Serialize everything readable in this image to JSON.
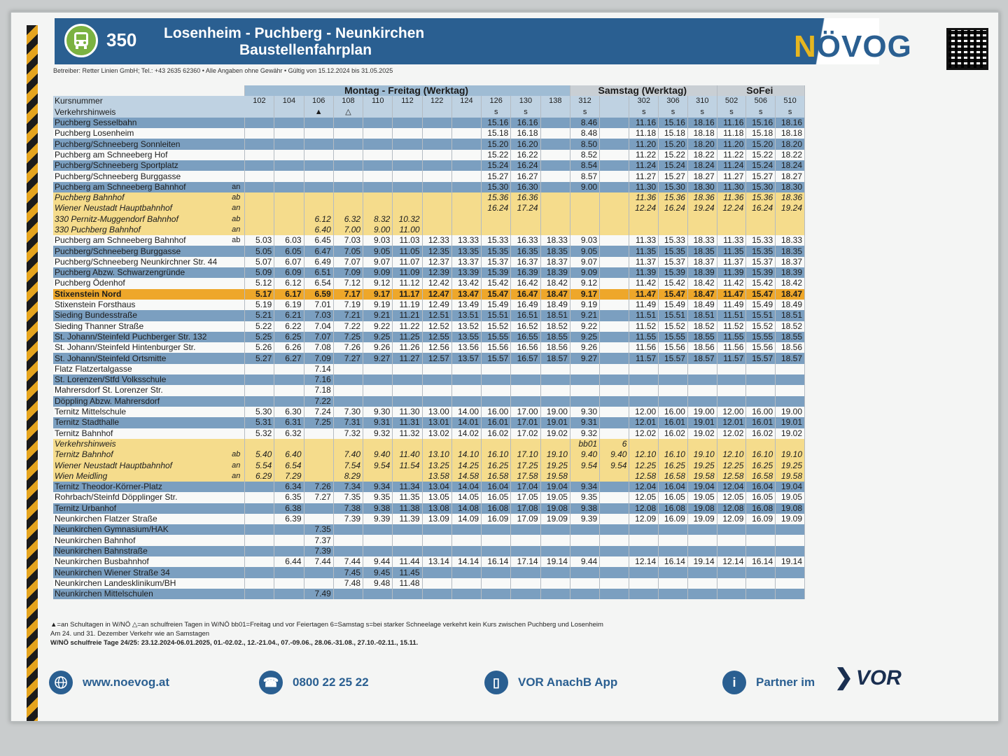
{
  "header": {
    "line_number": "350",
    "route_title": "Losenheim - Puchberg -  Neunkirchen",
    "subtitle": "Baustellenfahrplan",
    "brand_prefix": "N",
    "brand_name": "ÖVOG",
    "operator_line": "Betreiber: Retter Linien GmbH; Tel.: +43 2635 62360 • Alle Angaben ohne Gewähr • Gültig von 15.12.2024 bis 31.05.2025"
  },
  "groups": {
    "weekday": "Montag - Freitag (Werktag)",
    "saturday": "Samstag (Werktag)",
    "sunday": "SoFei"
  },
  "labels": {
    "kursnummer": "Kursnummer",
    "verkehrshinweis": "Verkehrshinweis"
  },
  "courses": [
    "102",
    "104",
    "106",
    "108",
    "110",
    "112",
    "122",
    "124",
    "126",
    "130",
    "138",
    "312",
    "",
    "302",
    "306",
    "310",
    "502",
    "506",
    "510"
  ],
  "hints": [
    "",
    "",
    "▲",
    "△",
    "",
    "",
    "",
    "",
    "s",
    "s",
    "",
    "s",
    "",
    "s",
    "s",
    "s",
    "s",
    "s",
    "s"
  ],
  "rows": [
    {
      "stop": "Puchberg Sesselbahn",
      "ab": "",
      "style": "blue",
      "t": [
        "",
        "",
        "",
        "",
        "",
        "",
        "",
        "",
        "15.16",
        "16.16",
        "",
        "8.46",
        "",
        "11.16",
        "15.16",
        "18.16",
        "11.16",
        "15.16",
        "18.16"
      ]
    },
    {
      "stop": "Puchberg Losenheim",
      "ab": "",
      "style": "white",
      "t": [
        "",
        "",
        "",
        "",
        "",
        "",
        "",
        "",
        "15.18",
        "16.18",
        "",
        "8.48",
        "",
        "11.18",
        "15.18",
        "18.18",
        "11.18",
        "15.18",
        "18.18"
      ]
    },
    {
      "stop": "Puchberg/Schneeberg Sonnleiten",
      "ab": "",
      "style": "blue",
      "t": [
        "",
        "",
        "",
        "",
        "",
        "",
        "",
        "",
        "15.20",
        "16.20",
        "",
        "8.50",
        "",
        "11.20",
        "15.20",
        "18.20",
        "11.20",
        "15.20",
        "18.20"
      ]
    },
    {
      "stop": "Puchberg am Schneeberg Hof",
      "ab": "",
      "style": "white",
      "t": [
        "",
        "",
        "",
        "",
        "",
        "",
        "",
        "",
        "15.22",
        "16.22",
        "",
        "8.52",
        "",
        "11.22",
        "15.22",
        "18.22",
        "11.22",
        "15.22",
        "18.22"
      ]
    },
    {
      "stop": "Puchberg/Schneeberg Sportplatz",
      "ab": "",
      "style": "blue",
      "t": [
        "",
        "",
        "",
        "",
        "",
        "",
        "",
        "",
        "15.24",
        "16.24",
        "",
        "8.54",
        "",
        "11.24",
        "15.24",
        "18.24",
        "11.24",
        "15.24",
        "18.24"
      ]
    },
    {
      "stop": "Puchberg/Schneeberg Burggasse",
      "ab": "",
      "style": "white",
      "t": [
        "",
        "",
        "",
        "",
        "",
        "",
        "",
        "",
        "15.27",
        "16.27",
        "",
        "8.57",
        "",
        "11.27",
        "15.27",
        "18.27",
        "11.27",
        "15.27",
        "18.27"
      ]
    },
    {
      "stop": "Puchberg am Schneeberg Bahnhof",
      "ab": "an",
      "style": "blue",
      "t": [
        "",
        "",
        "",
        "",
        "",
        "",
        "",
        "",
        "15.30",
        "16.30",
        "",
        "9.00",
        "",
        "11.30",
        "15.30",
        "18.30",
        "11.30",
        "15.30",
        "18.30"
      ]
    },
    {
      "stop": "Puchberg Bahnhof",
      "ab": "ab",
      "style": "yellow",
      "t": [
        "",
        "",
        "",
        "",
        "",
        "",
        "",
        "",
        "15.36",
        "16.36",
        "",
        "",
        "",
        "11.36",
        "15.36",
        "18.36",
        "11.36",
        "15.36",
        "18.36"
      ]
    },
    {
      "stop": "Wiener Neustadt Hauptbahnhof",
      "ab": "an",
      "style": "yellow",
      "t": [
        "",
        "",
        "",
        "",
        "",
        "",
        "",
        "",
        "16.24",
        "17.24",
        "",
        "",
        "",
        "12.24",
        "16.24",
        "19.24",
        "12.24",
        "16.24",
        "19.24"
      ]
    },
    {
      "stop": "330 Pernitz-Muggendorf Bahnhof",
      "ab": "ab",
      "style": "yellow",
      "t": [
        "",
        "",
        "6.12",
        "6.32",
        "8.32",
        "10.32",
        "",
        "",
        "",
        "",
        "",
        "",
        "",
        "",
        "",
        "",
        "",
        "",
        ""
      ]
    },
    {
      "stop": "330 Puchberg Bahnhof",
      "ab": "an",
      "style": "yellow",
      "t": [
        "",
        "",
        "6.40",
        "7.00",
        "9.00",
        "11.00",
        "",
        "",
        "",
        "",
        "",
        "",
        "",
        "",
        "",
        "",
        "",
        "",
        ""
      ]
    },
    {
      "stop": "Puchberg am Schneeberg Bahnhof",
      "ab": "ab",
      "style": "white",
      "t": [
        "5.03",
        "6.03",
        "6.45",
        "7.03",
        "9.03",
        "11.03",
        "12.33",
        "13.33",
        "15.33",
        "16.33",
        "18.33",
        "9.03",
        "",
        "11.33",
        "15.33",
        "18.33",
        "11.33",
        "15.33",
        "18.33"
      ]
    },
    {
      "stop": "Puchberg/Schneeberg Burggasse",
      "ab": "",
      "style": "blue",
      "t": [
        "5.05",
        "6.05",
        "6.47",
        "7.05",
        "9.05",
        "11.05",
        "12.35",
        "13.35",
        "15.35",
        "16.35",
        "18.35",
        "9.05",
        "",
        "11.35",
        "15.35",
        "18.35",
        "11.35",
        "15.35",
        "18.35"
      ]
    },
    {
      "stop": "Puchberg/Schneeberg Neunkirchner Str. 44",
      "ab": "",
      "style": "white",
      "t": [
        "5.07",
        "6.07",
        "6.49",
        "7.07",
        "9.07",
        "11.07",
        "12.37",
        "13.37",
        "15.37",
        "16.37",
        "18.37",
        "9.07",
        "",
        "11.37",
        "15.37",
        "18.37",
        "11.37",
        "15.37",
        "18.37"
      ]
    },
    {
      "stop": "Puchberg Abzw. Schwarzengründe",
      "ab": "",
      "style": "blue",
      "t": [
        "5.09",
        "6.09",
        "6.51",
        "7.09",
        "9.09",
        "11.09",
        "12.39",
        "13.39",
        "15.39",
        "16.39",
        "18.39",
        "9.09",
        "",
        "11.39",
        "15.39",
        "18.39",
        "11.39",
        "15.39",
        "18.39"
      ]
    },
    {
      "stop": "Puchberg Ödenhof",
      "ab": "",
      "style": "white",
      "t": [
        "5.12",
        "6.12",
        "6.54",
        "7.12",
        "9.12",
        "11.12",
        "12.42",
        "13.42",
        "15.42",
        "16.42",
        "18.42",
        "9.12",
        "",
        "11.42",
        "15.42",
        "18.42",
        "11.42",
        "15.42",
        "18.42"
      ]
    },
    {
      "stop": "Stixenstein Nord",
      "ab": "",
      "style": "highlight",
      "t": [
        "5.17",
        "6.17",
        "6.59",
        "7.17",
        "9.17",
        "11.17",
        "12.47",
        "13.47",
        "15.47",
        "16.47",
        "18.47",
        "9.17",
        "",
        "11.47",
        "15.47",
        "18.47",
        "11.47",
        "15.47",
        "18.47"
      ]
    },
    {
      "stop": "Stixenstein Forsthaus",
      "ab": "",
      "style": "white",
      "t": [
        "5.19",
        "6.19",
        "7.01",
        "7.19",
        "9.19",
        "11.19",
        "12.49",
        "13.49",
        "15.49",
        "16.49",
        "18.49",
        "9.19",
        "",
        "11.49",
        "15.49",
        "18.49",
        "11.49",
        "15.49",
        "18.49"
      ]
    },
    {
      "stop": "Sieding Bundesstraße",
      "ab": "",
      "style": "blue",
      "t": [
        "5.21",
        "6.21",
        "7.03",
        "7.21",
        "9.21",
        "11.21",
        "12.51",
        "13.51",
        "15.51",
        "16.51",
        "18.51",
        "9.21",
        "",
        "11.51",
        "15.51",
        "18.51",
        "11.51",
        "15.51",
        "18.51"
      ]
    },
    {
      "stop": "Sieding Thanner Straße",
      "ab": "",
      "style": "white",
      "t": [
        "5.22",
        "6.22",
        "7.04",
        "7.22",
        "9.22",
        "11.22",
        "12.52",
        "13.52",
        "15.52",
        "16.52",
        "18.52",
        "9.22",
        "",
        "11.52",
        "15.52",
        "18.52",
        "11.52",
        "15.52",
        "18.52"
      ]
    },
    {
      "stop": "St. Johann/Steinfeld Puchberger Str. 132",
      "ab": "",
      "style": "blue",
      "t": [
        "5.25",
        "6.25",
        "7.07",
        "7.25",
        "9.25",
        "11.25",
        "12.55",
        "13.55",
        "15.55",
        "16.55",
        "18.55",
        "9.25",
        "",
        "11.55",
        "15.55",
        "18.55",
        "11.55",
        "15.55",
        "18.55"
      ]
    },
    {
      "stop": "St. Johann/Steinfeld Hintenburger Str.",
      "ab": "",
      "style": "white",
      "t": [
        "5.26",
        "6.26",
        "7.08",
        "7.26",
        "9.26",
        "11.26",
        "12.56",
        "13.56",
        "15.56",
        "16.56",
        "18.56",
        "9.26",
        "",
        "11.56",
        "15.56",
        "18.56",
        "11.56",
        "15.56",
        "18.56"
      ]
    },
    {
      "stop": "St. Johann/Steinfeld Ortsmitte",
      "ab": "",
      "style": "blue",
      "t": [
        "5.27",
        "6.27",
        "7.09",
        "7.27",
        "9.27",
        "11.27",
        "12.57",
        "13.57",
        "15.57",
        "16.57",
        "18.57",
        "9.27",
        "",
        "11.57",
        "15.57",
        "18.57",
        "11.57",
        "15.57",
        "18.57"
      ]
    },
    {
      "stop": "Flatz Flatzertalgasse",
      "ab": "",
      "style": "white",
      "t": [
        "",
        "",
        "7.14",
        "",
        "",
        "",
        "",
        "",
        "",
        "",
        "",
        "",
        "",
        "",
        "",
        "",
        "",
        "",
        ""
      ]
    },
    {
      "stop": "St. Lorenzen/Stfd Volksschule",
      "ab": "",
      "style": "blue",
      "t": [
        "",
        "",
        "7.16",
        "",
        "",
        "",
        "",
        "",
        "",
        "",
        "",
        "",
        "",
        "",
        "",
        "",
        "",
        "",
        ""
      ]
    },
    {
      "stop": "Mahrersdorf St. Lorenzer Str.",
      "ab": "",
      "style": "white",
      "t": [
        "",
        "",
        "7.18",
        "",
        "",
        "",
        "",
        "",
        "",
        "",
        "",
        "",
        "",
        "",
        "",
        "",
        "",
        "",
        ""
      ]
    },
    {
      "stop": "Döppling Abzw. Mahrersdorf",
      "ab": "",
      "style": "blue",
      "t": [
        "",
        "",
        "7.22",
        "",
        "",
        "",
        "",
        "",
        "",
        "",
        "",
        "",
        "",
        "",
        "",
        "",
        "",
        "",
        ""
      ]
    },
    {
      "stop": "Ternitz Mittelschule",
      "ab": "",
      "style": "white",
      "t": [
        "5.30",
        "6.30",
        "7.24",
        "7.30",
        "9.30",
        "11.30",
        "13.00",
        "14.00",
        "16.00",
        "17.00",
        "19.00",
        "9.30",
        "",
        "12.00",
        "16.00",
        "19.00",
        "12.00",
        "16.00",
        "19.00"
      ]
    },
    {
      "stop": "Ternitz Stadthalle",
      "ab": "",
      "style": "blue",
      "t": [
        "5.31",
        "6.31",
        "7.25",
        "7.31",
        "9.31",
        "11.31",
        "13.01",
        "14.01",
        "16.01",
        "17.01",
        "19.01",
        "9.31",
        "",
        "12.01",
        "16.01",
        "19.01",
        "12.01",
        "16.01",
        "19.01"
      ]
    },
    {
      "stop": "Ternitz Bahnhof",
      "ab": "",
      "style": "white",
      "t": [
        "5.32",
        "6.32",
        "",
        "7.32",
        "9.32",
        "11.32",
        "13.02",
        "14.02",
        "16.02",
        "17.02",
        "19.02",
        "9.32",
        "",
        "12.02",
        "16.02",
        "19.02",
        "12.02",
        "16.02",
        "19.02"
      ]
    },
    {
      "stop": "Verkehrshinweis",
      "ab": "",
      "style": "yellow",
      "t": [
        "",
        "",
        "",
        "",
        "",
        "",
        "",
        "",
        "",
        "",
        "",
        "bb01",
        "6",
        "",
        "",
        "",
        "",
        "",
        ""
      ]
    },
    {
      "stop": "Ternitz Bahnhof",
      "ab": "ab",
      "style": "yellow",
      "t": [
        "5.40",
        "6.40",
        "",
        "7.40",
        "9.40",
        "11.40",
        "13.10",
        "14.10",
        "16.10",
        "17.10",
        "19.10",
        "9.40",
        "9.40",
        "12.10",
        "16.10",
        "19.10",
        "12.10",
        "16.10",
        "19.10"
      ]
    },
    {
      "stop": "Wiener Neustadt Hauptbahnhof",
      "ab": "an",
      "style": "yellow",
      "t": [
        "5.54",
        "6.54",
        "",
        "7.54",
        "9.54",
        "11.54",
        "13.25",
        "14.25",
        "16.25",
        "17.25",
        "19.25",
        "9.54",
        "9.54",
        "12.25",
        "16.25",
        "19.25",
        "12.25",
        "16.25",
        "19.25"
      ]
    },
    {
      "stop": "Wien Meidling",
      "ab": "an",
      "style": "yellow",
      "t": [
        "6.29",
        "7.29",
        "",
        "8.29",
        "",
        "",
        "13.58",
        "14.58",
        "16.58",
        "17.58",
        "19.58",
        "",
        "",
        "12.58",
        "16.58",
        "19.58",
        "12.58",
        "16.58",
        "19.58"
      ]
    },
    {
      "stop": "Ternitz Theodor-Körner-Platz",
      "ab": "",
      "style": "blue",
      "t": [
        "",
        "6.34",
        "7.26",
        "7.34",
        "9.34",
        "11.34",
        "13.04",
        "14.04",
        "16.04",
        "17.04",
        "19.04",
        "9.34",
        "",
        "12.04",
        "16.04",
        "19.04",
        "12.04",
        "16.04",
        "19.04"
      ]
    },
    {
      "stop": "Rohrbach/Steinfd Döpplinger Str.",
      "ab": "",
      "style": "white",
      "t": [
        "",
        "6.35",
        "7.27",
        "7.35",
        "9.35",
        "11.35",
        "13.05",
        "14.05",
        "16.05",
        "17.05",
        "19.05",
        "9.35",
        "",
        "12.05",
        "16.05",
        "19.05",
        "12.05",
        "16.05",
        "19.05"
      ]
    },
    {
      "stop": "Ternitz Urbanhof",
      "ab": "",
      "style": "blue",
      "t": [
        "",
        "6.38",
        "",
        "7.38",
        "9.38",
        "11.38",
        "13.08",
        "14.08",
        "16.08",
        "17.08",
        "19.08",
        "9.38",
        "",
        "12.08",
        "16.08",
        "19.08",
        "12.08",
        "16.08",
        "19.08"
      ]
    },
    {
      "stop": "Neunkirchen Flatzer Straße",
      "ab": "",
      "style": "white",
      "t": [
        "",
        "6.39",
        "",
        "7.39",
        "9.39",
        "11.39",
        "13.09",
        "14.09",
        "16.09",
        "17.09",
        "19.09",
        "9.39",
        "",
        "12.09",
        "16.09",
        "19.09",
        "12.09",
        "16.09",
        "19.09"
      ]
    },
    {
      "stop": "Neunkirchen Gymnasium/HAK",
      "ab": "",
      "style": "blue",
      "t": [
        "",
        "",
        "7.35",
        "",
        "",
        "",
        "",
        "",
        "",
        "",
        "",
        "",
        "",
        "",
        "",
        "",
        "",
        "",
        ""
      ]
    },
    {
      "stop": "Neunkirchen Bahnhof",
      "ab": "",
      "style": "white",
      "t": [
        "",
        "",
        "7.37",
        "",
        "",
        "",
        "",
        "",
        "",
        "",
        "",
        "",
        "",
        "",
        "",
        "",
        "",
        "",
        ""
      ]
    },
    {
      "stop": "Neunkirchen Bahnstraße",
      "ab": "",
      "style": "blue",
      "t": [
        "",
        "",
        "7.39",
        "",
        "",
        "",
        "",
        "",
        "",
        "",
        "",
        "",
        "",
        "",
        "",
        "",
        "",
        "",
        ""
      ]
    },
    {
      "stop": "Neunkirchen Busbahnhof",
      "ab": "",
      "style": "white",
      "t": [
        "",
        "6.44",
        "7.44",
        "7.44",
        "9.44",
        "11.44",
        "13.14",
        "14.14",
        "16.14",
        "17.14",
        "19.14",
        "9.44",
        "",
        "12.14",
        "16.14",
        "19.14",
        "12.14",
        "16.14",
        "19.14"
      ]
    },
    {
      "stop": "Neunkirchen Wiener Straße 34",
      "ab": "",
      "style": "blue",
      "t": [
        "",
        "",
        "",
        "7.45",
        "9.45",
        "11.45",
        "",
        "",
        "",
        "",
        "",
        "",
        "",
        "",
        "",
        "",
        "",
        "",
        ""
      ]
    },
    {
      "stop": "Neunkirchen Landesklinikum/BH",
      "ab": "",
      "style": "white",
      "t": [
        "",
        "",
        "",
        "7.48",
        "9.48",
        "11.48",
        "",
        "",
        "",
        "",
        "",
        "",
        "",
        "",
        "",
        "",
        "",
        "",
        ""
      ]
    },
    {
      "stop": "Neunkirchen Mittelschulen",
      "ab": "",
      "style": "blue",
      "t": [
        "",
        "",
        "7.49",
        "",
        "",
        "",
        "",
        "",
        "",
        "",
        "",
        "",
        "",
        "",
        "",
        "",
        "",
        "",
        ""
      ]
    }
  ],
  "legend": {
    "line1": "▲=an Schultagen in W/NÖ  △=an schulfreien Tagen in W/NÖ   bb01=Freitag und vor Feiertagen   6=Samstag   s=bei starker Schneelage verkehrt kein Kurs zwischen Puchberg und Losenheim",
    "line2": "Am 24. und 31. Dezember Verkehr wie an Samstagen",
    "line3": "W/NÖ schulfreie Tage 24/25: 23.12.2024-06.01.2025, 01.-02.02., 12.-21.04., 07.-09.06., 28.06.-31.08., 27.10.-02.11., 15.11."
  },
  "footer": {
    "web": "www.noevog.at",
    "phone": "0800 22 25 22",
    "app": "VOR AnachB App",
    "partner": "Partner im",
    "partner_brand": "VOR"
  },
  "colors": {
    "brand_blue": "#2a5f91",
    "row_blue": "#7b9fc0",
    "row_yellow": "#f5dc8c",
    "highlight_orange": "#eea72a",
    "bus_green": "#7bb241"
  }
}
